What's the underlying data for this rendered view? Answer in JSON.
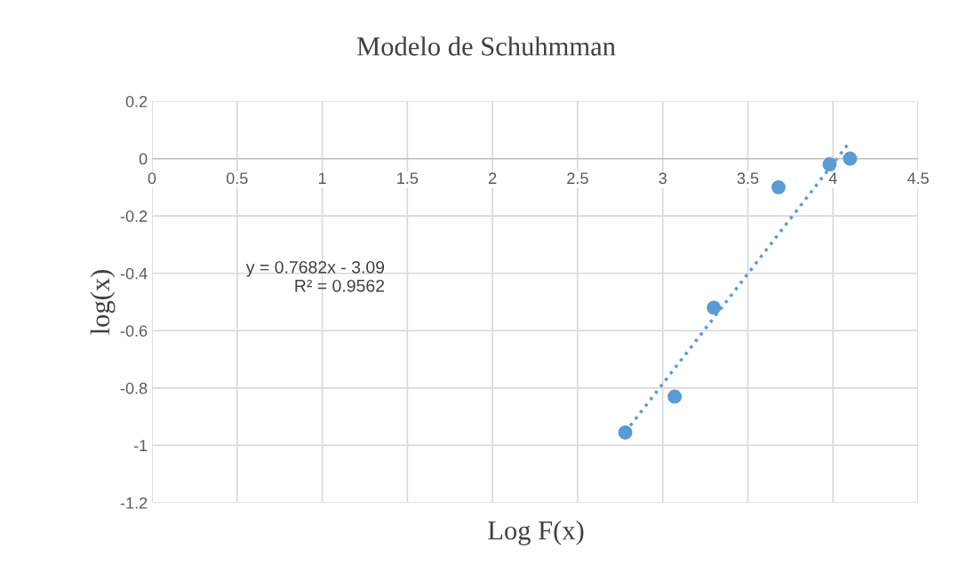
{
  "chart_data": {
    "type": "scatter",
    "title": "Modelo de Schuhmman",
    "xlabel": "Log F(x)",
    "ylabel": "log(x)",
    "series": [
      {
        "color": "#5b9bd5",
        "marker": "circle",
        "x": [
          2.78,
          3.07,
          3.3,
          3.68,
          3.98,
          4.1
        ],
        "values": [
          -0.955,
          -0.83,
          -0.52,
          -0.1,
          -0.02,
          0.0
        ]
      },
      {
        "type": "line",
        "color": "#5b9bd5",
        "marker": "none",
        "line_style": "dotted",
        "x": [
          2.78,
          4.1
        ],
        "values": [
          -0.954,
          0.059
        ]
      }
    ],
    "annotations": [
      "y = 0.7682x - 3.09\nR² = 0.9562"
    ],
    "xlim": [
      0,
      4.5
    ],
    "xticks": [
      0,
      0.5,
      1,
      1.5,
      2,
      2.5,
      3,
      3.5,
      4,
      4.5
    ],
    "ylim": [
      -1.2,
      0.2
    ],
    "yticks": [
      -1.2,
      -1,
      -0.8,
      -0.6,
      -0.4,
      -0.2,
      0,
      0.2
    ],
    "grid": true,
    "legend": false
  }
}
